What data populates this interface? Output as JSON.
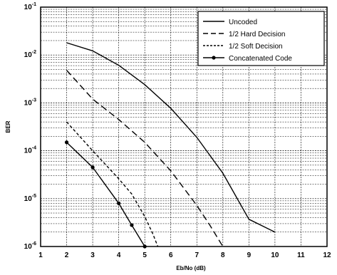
{
  "chart_data": {
    "type": "line",
    "title": "",
    "xlabel": "Eb/No (dB)",
    "ylabel": "BER",
    "xlim": [
      1,
      12
    ],
    "ylim": [
      1e-06,
      0.1
    ],
    "yscale": "log",
    "grid": true,
    "legend_position": "top-right",
    "x_ticks": [
      "1",
      "2",
      "3",
      "4",
      "5",
      "6",
      "7",
      "8",
      "9",
      "10",
      "11",
      "12"
    ],
    "y_ticks": [
      {
        "value": 0.1,
        "mantissa": "10",
        "exp": "-1"
      },
      {
        "value": 0.01,
        "mantissa": "10",
        "exp": "-2"
      },
      {
        "value": 0.001,
        "mantissa": "10",
        "exp": "-3"
      },
      {
        "value": 0.0001,
        "mantissa": "10",
        "exp": "-4"
      },
      {
        "value": 1e-05,
        "mantissa": "10",
        "exp": "-5"
      },
      {
        "value": 1e-06,
        "mantissa": "10",
        "exp": "-6"
      }
    ],
    "series": [
      {
        "name": "Uncoded",
        "style": "solid",
        "marker": false,
        "x": [
          2,
          3,
          4,
          5,
          6,
          7,
          8,
          9,
          10
        ],
        "y": [
          0.018,
          0.0122,
          0.0061,
          0.0024,
          0.00077,
          0.00019,
          3.4e-05,
          3.7e-06,
          2e-06
        ]
      },
      {
        "name": "1/2 Hard Decision",
        "style": "dashed",
        "marker": false,
        "x": [
          2,
          3,
          4,
          5,
          6,
          7,
          7.5,
          8
        ],
        "y": [
          0.0048,
          0.0012,
          0.00045,
          0.00015,
          3.8e-05,
          7.2e-06,
          2.8e-06,
          1e-06
        ]
      },
      {
        "name": "1/2 Soft Decision",
        "style": "dotted",
        "marker": false,
        "x": [
          2,
          3,
          4,
          4.5,
          5,
          5.3,
          5.5
        ],
        "y": [
          0.0004,
          0.0001,
          2.6e-05,
          1.25e-05,
          4.2e-06,
          1.9e-06,
          1e-06
        ]
      },
      {
        "name": "Concatenated Code",
        "style": "solid",
        "marker": true,
        "x": [
          2,
          3,
          4,
          4.5,
          5
        ],
        "y": [
          0.00015,
          4.5e-05,
          8e-06,
          2.8e-06,
          1e-06
        ]
      }
    ]
  }
}
